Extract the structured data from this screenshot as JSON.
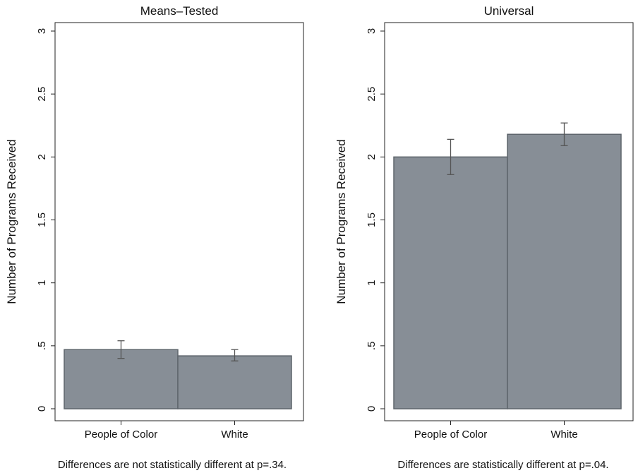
{
  "chart_data": [
    {
      "type": "bar",
      "title": "Means–Tested",
      "ylabel": "Number of Programs Received",
      "categories": [
        "People of Color",
        "White"
      ],
      "values": [
        0.47,
        0.42
      ],
      "error_low": [
        0.4,
        0.38
      ],
      "error_high": [
        0.54,
        0.47
      ],
      "ylim": [
        0,
        3
      ],
      "yticks": [
        "0",
        ".5",
        "1",
        "1.5",
        "2",
        "2.5",
        "3"
      ],
      "note": "Differences are not statistically different at p=.34.",
      "bar_color": "#878e96"
    },
    {
      "type": "bar",
      "title": "Universal",
      "ylabel": "Number of Programs Received",
      "categories": [
        "People of Color",
        "White"
      ],
      "values": [
        2.0,
        2.18
      ],
      "error_low": [
        1.86,
        2.09
      ],
      "error_high": [
        2.14,
        2.27
      ],
      "ylim": [
        0,
        3
      ],
      "yticks": [
        "0",
        ".5",
        "1",
        "1.5",
        "2",
        "2.5",
        "3"
      ],
      "note": "Differences are statistically different at p=.04.",
      "bar_color": "#878e96"
    }
  ]
}
